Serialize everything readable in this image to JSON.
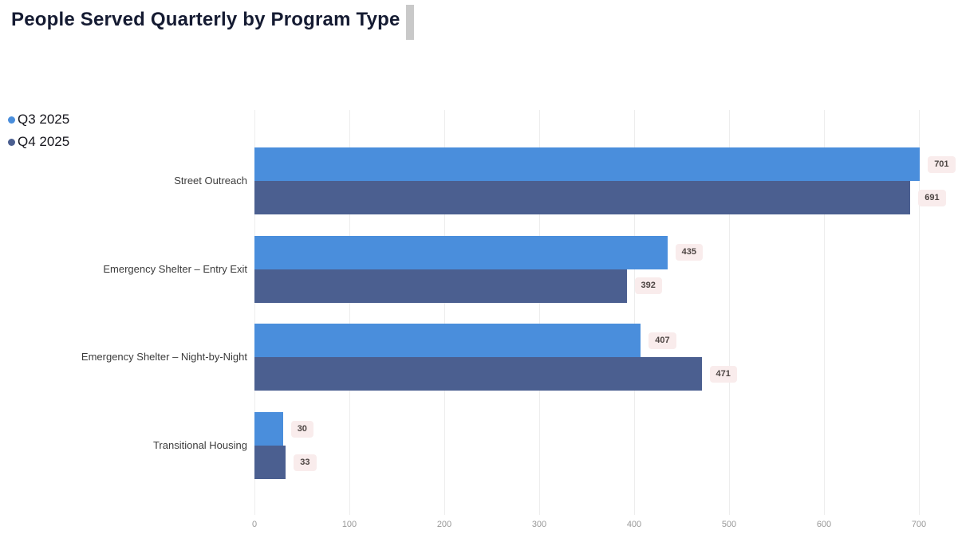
{
  "title": "People Served Quarterly by Program Type",
  "legend": {
    "items": [
      {
        "label": "Q3 2025",
        "color": "#4a8edc"
      },
      {
        "label": "Q4 2025",
        "color": "#4b5f90"
      }
    ]
  },
  "chart_data": {
    "type": "bar",
    "orientation": "horizontal",
    "title": "People Served Quarterly by Program Type",
    "categories": [
      "Street Outreach",
      "Emergency Shelter – Entry Exit",
      "Emergency Shelter – Night-by-Night",
      "Transitional Housing"
    ],
    "series": [
      {
        "name": "Q3 2025",
        "color": "#4a8edc",
        "values": [
          701,
          435,
          407,
          30
        ]
      },
      {
        "name": "Q4 2025",
        "color": "#4b5f90",
        "values": [
          691,
          392,
          471,
          33
        ]
      }
    ],
    "xlim": [
      0,
      700
    ],
    "x_ticks": [
      0,
      100,
      200,
      300,
      400,
      500,
      600,
      700
    ],
    "grid": true,
    "legend_position": "top-left",
    "value_labels": true
  },
  "colors": {
    "badge_bg": "#f9ecec",
    "badge_text": "#4d4543",
    "grid": "#ededed",
    "tick_text": "#999999",
    "category_text": "#3c3c3c",
    "title_text": "#151b32",
    "handle": "#c9c9c9"
  }
}
